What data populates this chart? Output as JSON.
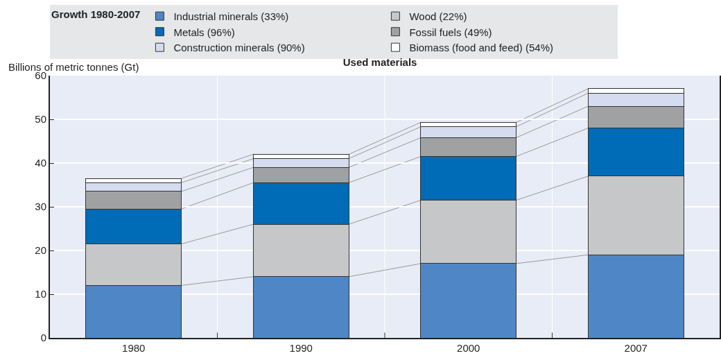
{
  "chart_data": {
    "type": "bar",
    "title": "Used materials",
    "ylabel": "Billions of metric tonnes (Gt)",
    "legend_title": "Growth 1980-2007",
    "categories": [
      "1980",
      "1990",
      "2000",
      "2007"
    ],
    "stacked": true,
    "series": [
      {
        "name": "Industrial minerals (33%)",
        "color": "#4f86c6",
        "values": [
          12,
          14,
          17,
          19
        ]
      },
      {
        "name": "Wood (22%)",
        "color": "#c6c7c9",
        "values": [
          9.5,
          12,
          14.5,
          18
        ]
      },
      {
        "name": "Metals (96%)",
        "color": "#006bb6",
        "values": [
          8,
          9.5,
          10,
          11
        ]
      },
      {
        "name": "Fossil fuels (49%)",
        "color": "#a0a1a3",
        "values": [
          4,
          3.5,
          4.3,
          5
        ]
      },
      {
        "name": "Construction minerals (90%)",
        "color": "#d5dcf0",
        "values": [
          2,
          2,
          2.5,
          3
        ]
      },
      {
        "name": "Biomass (food and feed) (54%)",
        "color": "#ffffff",
        "values": [
          1,
          1,
          1,
          1
        ]
      }
    ],
    "ylim": [
      0,
      60
    ],
    "yticks": [
      0,
      10,
      20,
      30,
      40,
      50,
      60
    ],
    "grid": true,
    "legend": "top"
  }
}
